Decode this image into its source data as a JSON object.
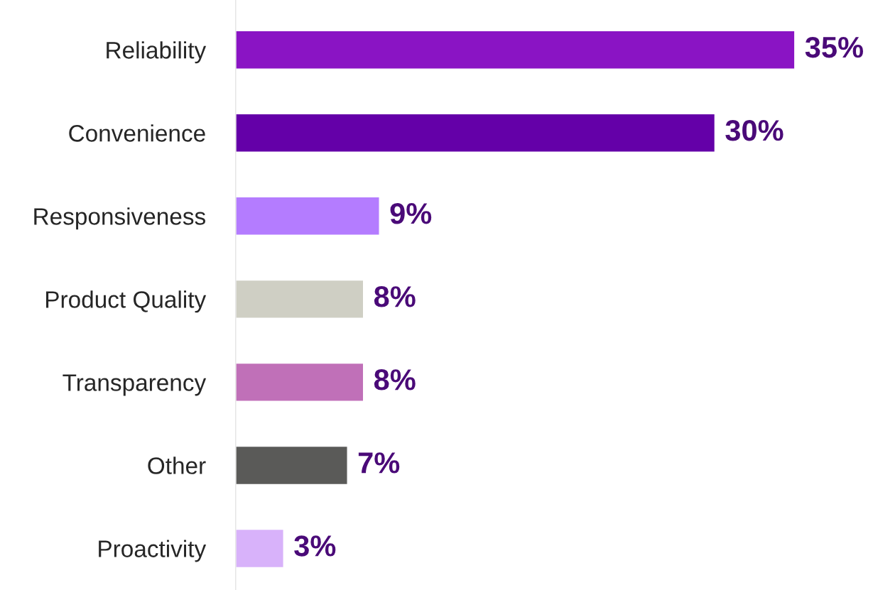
{
  "chart_data": {
    "type": "bar",
    "orientation": "horizontal",
    "data_labels": true,
    "grid": false,
    "legend": false,
    "tick_labels": "y",
    "categories": [
      "Reliability",
      "Convenience",
      "Responsiveness",
      "Product Quality",
      "Transparency",
      "Other",
      "Proactivity"
    ],
    "values": [
      35,
      30,
      9,
      8,
      8,
      7,
      3
    ],
    "value_labels": [
      "35%",
      "30%",
      "9%",
      "8%",
      "8%",
      "7%",
      "3%"
    ],
    "colors": [
      "#8a14c4",
      "#6400a8",
      "#b47cff",
      "#cfcfc4",
      "#c070b8",
      "#5a5a58",
      "#d8b2fa"
    ]
  }
}
